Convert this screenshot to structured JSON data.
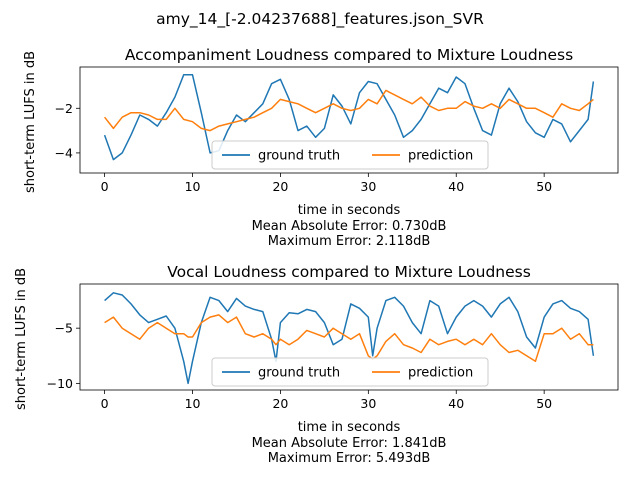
{
  "figure": {
    "suptitle": "amy_14_[-2.04237688]_features.json_SVR"
  },
  "colors": {
    "ground_truth": "#1f77b4",
    "prediction": "#ff7f0e",
    "axes": "#000000",
    "background": "#ffffff"
  },
  "chart_data": [
    {
      "type": "line",
      "title": "Accompaniment Loudness compared to Mixture Loudness",
      "xlabel": "time in seconds",
      "ylabel": "short-term LUFS in dB",
      "xlim": [
        -2.8,
        58.4
      ],
      "ylim": [
        -4.9,
        -0.15
      ],
      "xticks": [
        0,
        10,
        20,
        30,
        40,
        50
      ],
      "yticks": [
        -4,
        -2
      ],
      "legend_position": "lower center",
      "stats": [
        "Mean Absolute Error: 0.730dB",
        "Maximum Error: 2.118dB"
      ],
      "series": [
        {
          "name": "ground truth",
          "color": "#1f77b4",
          "x": [
            0,
            1,
            2,
            3,
            4,
            5,
            6,
            7,
            8,
            9,
            10,
            11,
            12,
            13,
            14,
            15,
            16,
            17,
            18,
            19,
            20,
            21,
            22,
            23,
            24,
            25,
            26,
            27,
            28,
            29,
            30,
            31,
            32,
            33,
            34,
            35,
            36,
            37,
            38,
            39,
            40,
            41,
            42,
            43,
            44,
            45,
            46,
            47,
            48,
            49,
            50,
            51,
            52,
            53,
            54,
            55,
            55.6
          ],
          "y": [
            -3.2,
            -4.3,
            -4.0,
            -3.2,
            -2.3,
            -2.5,
            -2.8,
            -2.2,
            -1.5,
            -0.5,
            -0.5,
            -2.2,
            -4.0,
            -3.9,
            -3.0,
            -2.3,
            -2.6,
            -2.2,
            -1.8,
            -0.9,
            -0.7,
            -1.6,
            -3.0,
            -2.8,
            -3.3,
            -2.9,
            -1.4,
            -1.9,
            -2.7,
            -1.3,
            -0.8,
            -0.9,
            -1.6,
            -2.3,
            -3.3,
            -3.0,
            -2.5,
            -1.8,
            -1.1,
            -1.3,
            -0.6,
            -0.9,
            -2.0,
            -3.0,
            -3.2,
            -1.8,
            -1.1,
            -1.7,
            -2.6,
            -3.1,
            -3.3,
            -2.5,
            -2.7,
            -3.5,
            -3.0,
            -2.5,
            -0.8
          ]
        },
        {
          "name": "prediction",
          "color": "#ff7f0e",
          "x": [
            0,
            1,
            2,
            3,
            4,
            5,
            6,
            7,
            8,
            9,
            10,
            11,
            12,
            13,
            14,
            15,
            16,
            17,
            18,
            19,
            20,
            21,
            22,
            23,
            24,
            25,
            26,
            27,
            28,
            29,
            30,
            31,
            32,
            33,
            34,
            35,
            36,
            37,
            38,
            39,
            40,
            41,
            42,
            43,
            44,
            45,
            46,
            47,
            48,
            49,
            50,
            51,
            52,
            53,
            54,
            55,
            55.6
          ],
          "y": [
            -2.4,
            -2.9,
            -2.4,
            -2.2,
            -2.2,
            -2.3,
            -2.5,
            -2.5,
            -2.0,
            -2.5,
            -2.6,
            -2.9,
            -3.0,
            -2.8,
            -2.7,
            -2.6,
            -2.5,
            -2.4,
            -2.2,
            -2.0,
            -1.6,
            -1.7,
            -1.8,
            -2.0,
            -2.2,
            -2.0,
            -1.8,
            -2.0,
            -2.1,
            -2.0,
            -1.6,
            -1.8,
            -1.2,
            -1.4,
            -1.6,
            -1.8,
            -1.5,
            -1.9,
            -2.1,
            -2.0,
            -2.0,
            -1.7,
            -1.9,
            -2.0,
            -1.8,
            -2.0,
            -1.6,
            -1.8,
            -2.0,
            -2.0,
            -2.2,
            -2.4,
            -1.8,
            -2.0,
            -2.1,
            -1.8,
            -1.6
          ]
        }
      ]
    },
    {
      "type": "line",
      "title": "Vocal Loudness compared to Mixture Loudness",
      "xlabel": "time in seconds",
      "ylabel": "short-term LUFS in dB",
      "xlim": [
        -2.8,
        58.4
      ],
      "ylim": [
        -10.6,
        -1.0
      ],
      "xticks": [
        0,
        10,
        20,
        30,
        40,
        50
      ],
      "yticks": [
        -10,
        -5
      ],
      "legend_position": "lower center",
      "stats": [
        "Mean Absolute Error: 1.841dB",
        "Maximum Error: 5.493dB"
      ],
      "series": [
        {
          "name": "ground truth",
          "color": "#1f77b4",
          "x": [
            0,
            1,
            2,
            3,
            4,
            5,
            6,
            7,
            8,
            9,
            9.5,
            10,
            11,
            12,
            13,
            14,
            15,
            16,
            17,
            18,
            19,
            19.5,
            20,
            21,
            22,
            23,
            24,
            25,
            26,
            27,
            28,
            29,
            30,
            30.5,
            31,
            32,
            33,
            34,
            35,
            36,
            37,
            38,
            39,
            40,
            41,
            42,
            43,
            44,
            45,
            46,
            47,
            48,
            49,
            50,
            51,
            52,
            53,
            54,
            55,
            55.6
          ],
          "y": [
            -2.5,
            -1.8,
            -2.0,
            -2.8,
            -3.8,
            -4.5,
            -4.2,
            -3.9,
            -5.0,
            -8.0,
            -10.0,
            -8.0,
            -4.5,
            -2.2,
            -2.5,
            -3.5,
            -2.3,
            -3.0,
            -3.3,
            -3.5,
            -6.0,
            -8.0,
            -4.5,
            -3.6,
            -3.7,
            -3.3,
            -3.5,
            -4.5,
            -6.5,
            -6.0,
            -2.8,
            -3.2,
            -4.0,
            -7.5,
            -5.0,
            -2.5,
            -2.2,
            -3.0,
            -4.5,
            -5.5,
            -2.5,
            -3.0,
            -5.5,
            -4.0,
            -3.0,
            -2.5,
            -3.0,
            -4.0,
            -2.8,
            -2.2,
            -3.5,
            -5.8,
            -6.8,
            -4.0,
            -2.8,
            -2.5,
            -3.2,
            -3.5,
            -4.2,
            -7.5
          ]
        },
        {
          "name": "prediction",
          "color": "#ff7f0e",
          "x": [
            0,
            1,
            2,
            3,
            4,
            5,
            6,
            7,
            8,
            9,
            9.5,
            10,
            11,
            12,
            13,
            14,
            15,
            16,
            17,
            18,
            19,
            19.5,
            20,
            21,
            22,
            23,
            24,
            25,
            26,
            27,
            28,
            29,
            30,
            30.5,
            31,
            32,
            33,
            34,
            35,
            36,
            37,
            38,
            39,
            40,
            41,
            42,
            43,
            44,
            45,
            46,
            47,
            48,
            49,
            50,
            51,
            52,
            53,
            54,
            55,
            55.6
          ],
          "y": [
            -4.5,
            -4.0,
            -5.0,
            -5.5,
            -6.0,
            -5.0,
            -4.5,
            -5.0,
            -5.5,
            -5.5,
            -5.8,
            -5.8,
            -4.5,
            -4.0,
            -3.8,
            -4.5,
            -4.0,
            -5.5,
            -5.8,
            -5.5,
            -6.0,
            -6.5,
            -6.0,
            -6.5,
            -6.0,
            -5.2,
            -5.5,
            -5.8,
            -5.0,
            -5.5,
            -6.0,
            -5.5,
            -7.5,
            -7.8,
            -7.5,
            -6.2,
            -5.5,
            -6.5,
            -6.8,
            -7.2,
            -6.0,
            -6.5,
            -6.2,
            -6.0,
            -6.5,
            -6.0,
            -6.5,
            -5.5,
            -6.5,
            -7.2,
            -7.0,
            -7.5,
            -8.0,
            -5.5,
            -5.5,
            -5.0,
            -6.0,
            -5.5,
            -6.5,
            -6.5
          ]
        }
      ]
    }
  ]
}
